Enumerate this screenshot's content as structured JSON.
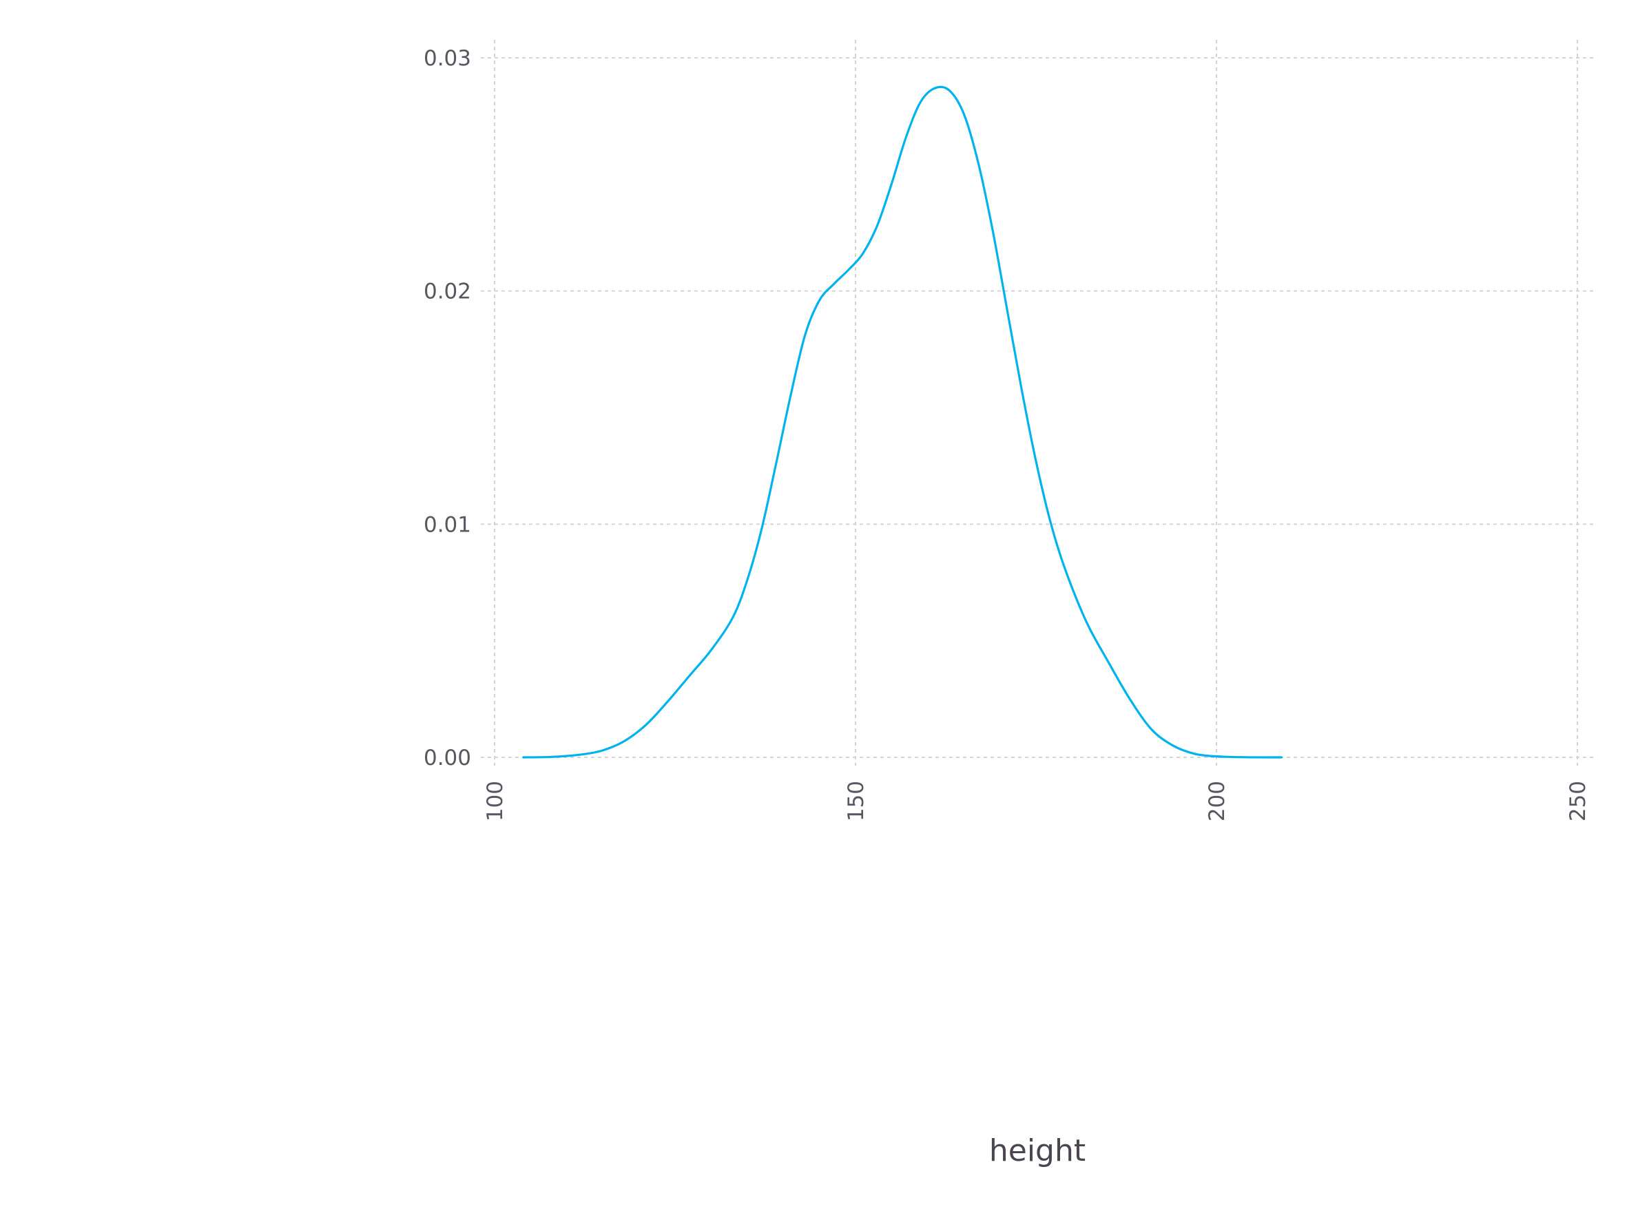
{
  "chart_data": {
    "type": "line",
    "title": "",
    "xlabel": "height",
    "ylabel": "",
    "xlim": [
      100,
      250
    ],
    "ylim": [
      0,
      0.03
    ],
    "grid": true,
    "x_ticks": [
      {
        "value": 100,
        "label": "100"
      },
      {
        "value": 150,
        "label": "150"
      },
      {
        "value": 200,
        "label": "200"
      },
      {
        "value": 250,
        "label": "250"
      }
    ],
    "y_ticks": [
      {
        "value": 0.0,
        "label": "0.00"
      },
      {
        "value": 0.01,
        "label": "0.01"
      },
      {
        "value": 0.02,
        "label": "0.02"
      },
      {
        "value": 0.03,
        "label": "0.03"
      }
    ],
    "series": [
      {
        "color": "#00b3ee",
        "x": [
          104,
          108,
          112,
          115,
          118,
          121,
          124,
          127,
          130,
          133,
          135,
          137,
          139,
          141,
          143,
          145,
          147,
          149,
          151,
          153,
          155,
          157,
          159,
          161,
          163,
          165,
          167,
          169,
          171,
          173,
          175,
          177,
          179,
          182,
          185,
          188,
          191,
          194,
          197,
          200,
          204,
          209
        ],
        "y": [
          0.0,
          2e-05,
          0.00012,
          0.0003,
          0.0007,
          0.0014,
          0.0024,
          0.0035,
          0.0046,
          0.006,
          0.0076,
          0.0098,
          0.0126,
          0.0155,
          0.0181,
          0.0196,
          0.0203,
          0.0209,
          0.0216,
          0.0228,
          0.0246,
          0.0266,
          0.0281,
          0.0287,
          0.0286,
          0.0276,
          0.0255,
          0.0226,
          0.0192,
          0.0158,
          0.0127,
          0.0101,
          0.0081,
          0.0058,
          0.0041,
          0.0025,
          0.0012,
          0.0005,
          0.00015,
          4e-05,
          5e-06,
          0.0
        ]
      }
    ]
  }
}
